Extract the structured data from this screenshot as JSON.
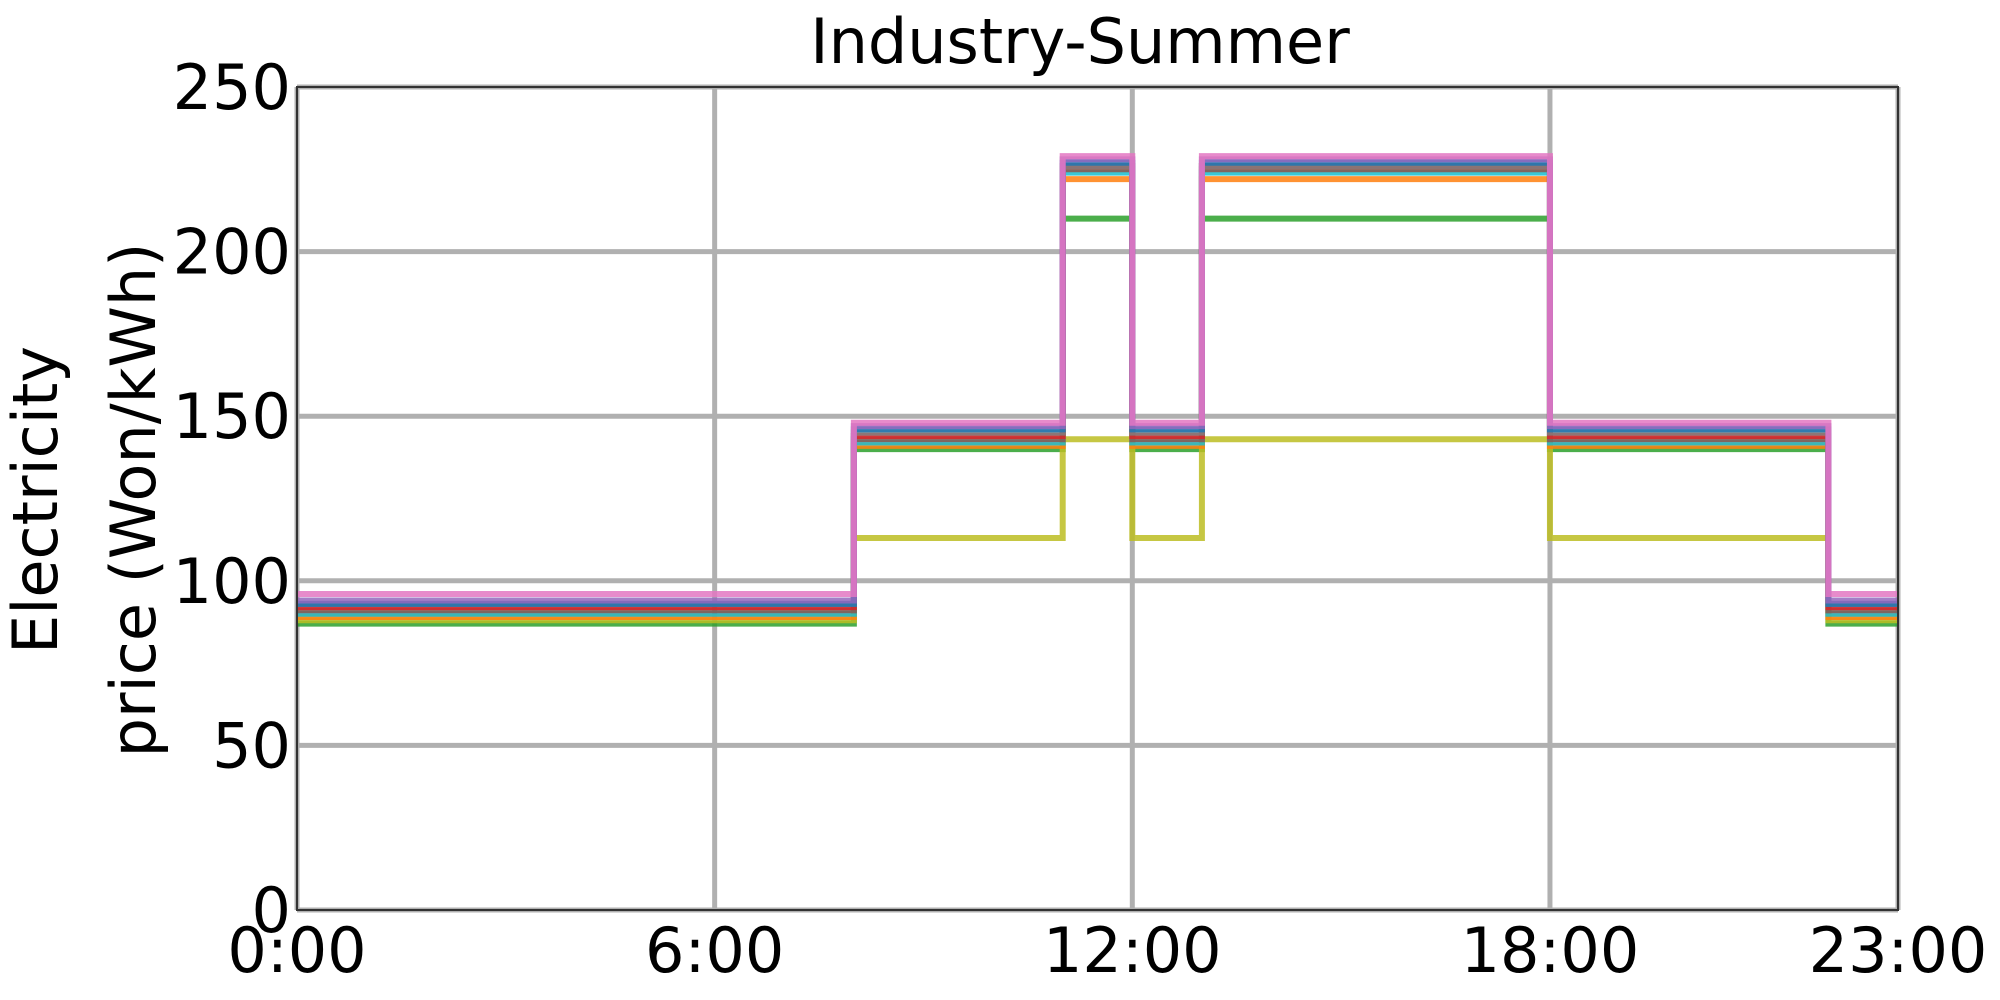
{
  "chart_data": {
    "type": "line",
    "drawstyle": "steps-post",
    "title": "Industry-Summer",
    "xlabel": "",
    "ylabel_lines": [
      "Electricity",
      "price (Won/kWh)"
    ],
    "xlim": [
      0,
      23
    ],
    "ylim": [
      0,
      250
    ],
    "xticks": [
      0,
      6,
      12,
      18,
      23
    ],
    "xtick_labels": [
      "0:00",
      "6:00",
      "12:00",
      "18:00",
      "23:00"
    ],
    "yticks": [
      0,
      50,
      100,
      150,
      200,
      250
    ],
    "ytick_labels": [
      "0",
      "50",
      "100",
      "150",
      "200",
      "250"
    ],
    "grid": true,
    "legend": "none",
    "x": [
      0,
      8,
      11,
      12,
      13,
      18,
      22,
      23
    ],
    "series": [
      {
        "color": "#2ca02c",
        "values": [
          87,
          140,
          210,
          140,
          210,
          140,
          87,
          87
        ]
      },
      {
        "color": "#bcbd22",
        "values": [
          88,
          113,
          143,
          113,
          143,
          113,
          88,
          88
        ]
      },
      {
        "color": "#ff7f0e",
        "values": [
          89,
          141,
          222,
          141,
          222,
          141,
          89,
          89
        ]
      },
      {
        "color": "#17becf",
        "values": [
          90,
          142,
          224,
          142,
          224,
          142,
          90,
          90
        ]
      },
      {
        "color": "#8c564b",
        "values": [
          91,
          143,
          225,
          143,
          225,
          143,
          91,
          91
        ]
      },
      {
        "color": "#d62728",
        "values": [
          92,
          144,
          226,
          144,
          226,
          144,
          92,
          92
        ]
      },
      {
        "color": "#7f7f7f",
        "values": [
          93,
          145,
          226,
          145,
          226,
          145,
          93,
          93
        ]
      },
      {
        "color": "#1f77b4",
        "values": [
          93,
          146,
          227,
          146,
          227,
          146,
          93,
          93
        ]
      },
      {
        "color": "#9467bd",
        "values": [
          94,
          147,
          228,
          147,
          228,
          147,
          94,
          94
        ]
      },
      {
        "color": "#e377c2",
        "values": [
          96,
          148,
          229,
          148,
          229,
          148,
          96,
          96
        ]
      }
    ]
  }
}
